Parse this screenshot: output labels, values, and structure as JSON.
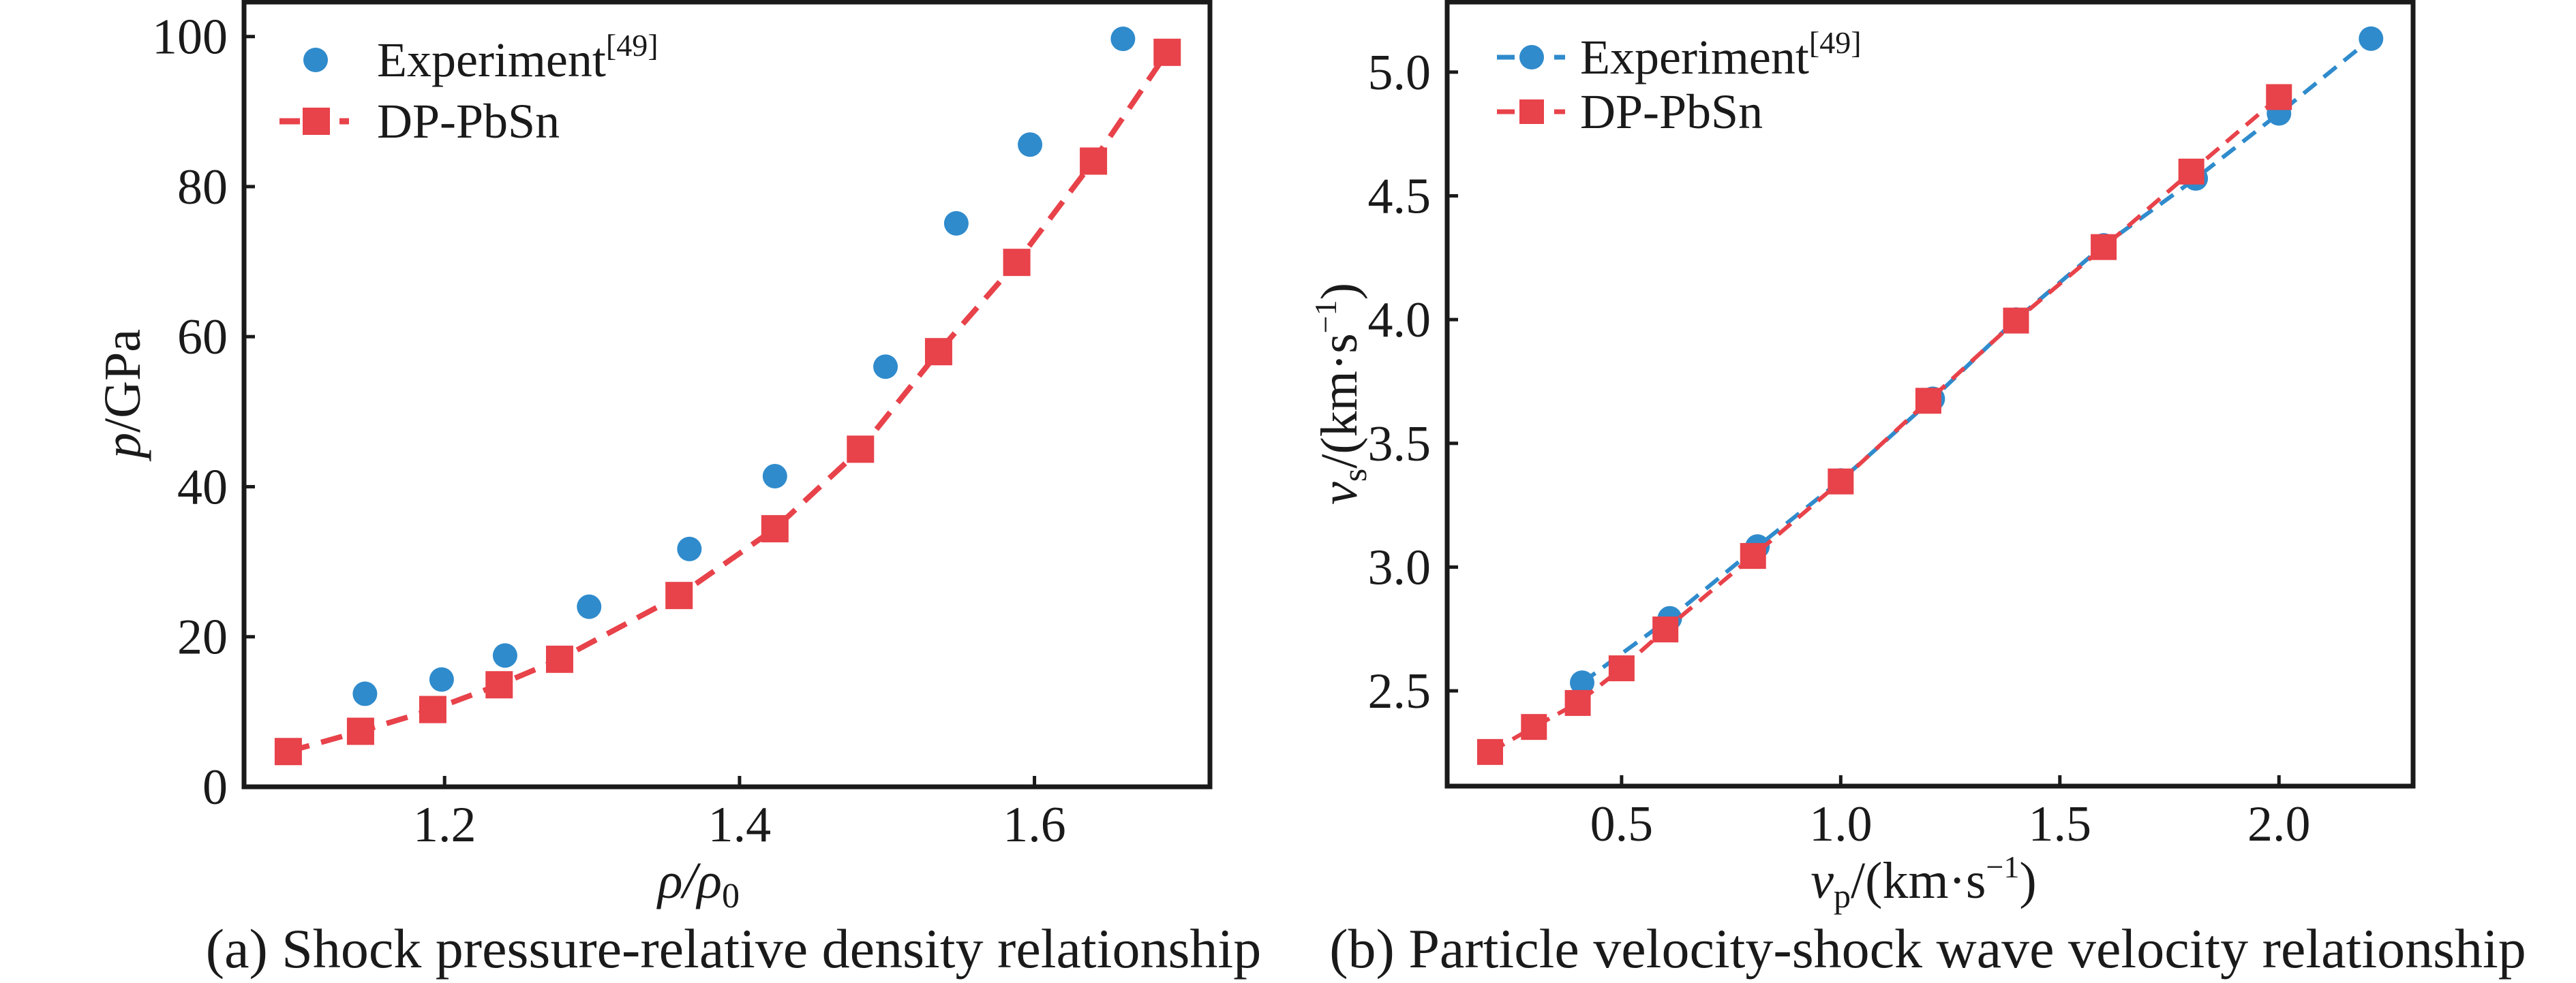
{
  "colors": {
    "experiment": "#2f8bcc",
    "dp_pbsn": "#e8424a",
    "axis": "#1a1a1a"
  },
  "chart_data": [
    {
      "type": "scatter",
      "caption": "(a) Shock pressure-relative density relationship",
      "xlabel_main": "ρ/ρ",
      "xlabel_sub": "0",
      "ylabel_italic": "p",
      "ylabel_rest": "/GPa",
      "xlim": [
        1.064,
        1.719
      ],
      "ylim": [
        0,
        104.6
      ],
      "xticks": [
        1.2,
        1.4,
        1.6
      ],
      "xtick_labels": [
        "1.2",
        "1.4",
        "1.6"
      ],
      "yticks": [
        0,
        20,
        40,
        60,
        80,
        100
      ],
      "ytick_labels": [
        "0",
        "20",
        "40",
        "60",
        "80",
        "100"
      ],
      "grid": false,
      "legend_position": "top-left",
      "series": [
        {
          "name": "Experiment",
          "name_superscript": "[49]",
          "marker": "circle",
          "line": "none",
          "color": "#2f8bcc",
          "x": [
            1.146,
            1.198,
            1.241,
            1.298,
            1.366,
            1.424,
            1.499,
            1.547,
            1.597,
            1.66
          ],
          "y": [
            12.4,
            14.3,
            17.5,
            24.0,
            31.7,
            41.4,
            56.0,
            75.1,
            85.6,
            99.7
          ]
        },
        {
          "name": "DP-PbSn",
          "name_superscript": "",
          "marker": "square",
          "line": "dashed",
          "color": "#e8424a",
          "x": [
            1.094,
            1.143,
            1.192,
            1.237,
            1.278,
            1.359,
            1.424,
            1.482,
            1.535,
            1.588,
            1.64,
            1.69
          ],
          "y": [
            4.7,
            7.4,
            10.3,
            13.6,
            17.0,
            25.5,
            34.4,
            45.0,
            58.0,
            69.9,
            83.4,
            97.9
          ]
        }
      ]
    },
    {
      "type": "line",
      "caption": "(b) Particle velocity-shock wave velocity relationship",
      "xlabel_var": "v",
      "xlabel_sub": "p",
      "xlabel_unit": "/(km·s",
      "xlabel_sup": "−1",
      "xlabel_close": ")",
      "ylabel_var": "v",
      "ylabel_sub": "s",
      "ylabel_unit": "/(km·s",
      "ylabel_sup": "−1",
      "ylabel_close": ")",
      "xlim": [
        0.102,
        2.306
      ],
      "ylim": [
        2.115,
        5.283
      ],
      "xticks": [
        0.5,
        1.0,
        1.5,
        2.0
      ],
      "xtick_labels": [
        "0.5",
        "1.0",
        "1.5",
        "2.0"
      ],
      "yticks": [
        2.5,
        3.0,
        3.5,
        4.0,
        4.5,
        5.0
      ],
      "ytick_labels": [
        "2.5",
        "3.0",
        "3.5",
        "4.0",
        "4.5",
        "5.0"
      ],
      "grid": false,
      "legend_position": "top-left",
      "series": [
        {
          "name": "Experiment",
          "name_superscript": "[49]",
          "marker": "circle",
          "line": "dashed",
          "color": "#2f8bcc",
          "x": [
            0.41,
            0.61,
            0.81,
            1.0,
            1.21,
            1.4,
            1.6,
            1.81,
            2.0,
            2.21
          ],
          "y": [
            2.533,
            2.793,
            3.083,
            3.35,
            3.68,
            4.0,
            4.3,
            4.57,
            4.833,
            5.135
          ]
        },
        {
          "name": "DP-PbSn",
          "name_superscript": "",
          "marker": "square",
          "line": "dashed",
          "color": "#e8424a",
          "x": [
            0.2,
            0.3,
            0.4,
            0.5,
            0.6,
            0.8,
            1.0,
            1.2,
            1.4,
            1.6,
            1.8,
            2.0
          ],
          "y": [
            2.253,
            2.354,
            2.451,
            2.591,
            2.748,
            3.045,
            3.346,
            3.672,
            3.996,
            4.293,
            4.598,
            4.899
          ]
        }
      ]
    }
  ]
}
